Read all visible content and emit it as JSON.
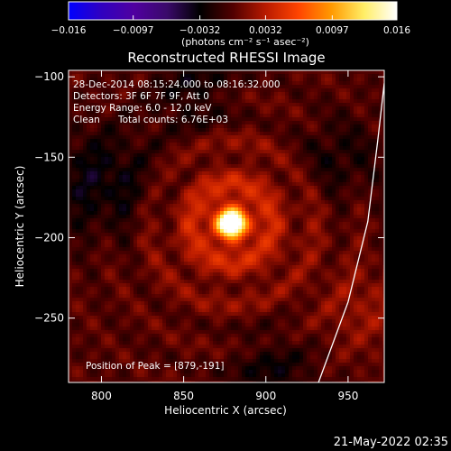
{
  "chart_data": {
    "type": "heatmap",
    "title": "Reconstructed RHESSI Image",
    "xlabel": "Heliocentric X (arcsec)",
    "ylabel": "Heliocentric Y (arcsec)",
    "xlim": [
      780,
      972
    ],
    "ylim": [
      -290,
      -96
    ],
    "x_ticks": [
      800,
      850,
      900,
      950
    ],
    "x_tick_labels": [
      "800",
      "850",
      "900",
      "950"
    ],
    "y_ticks": [
      -100,
      -150,
      -200,
      -250
    ],
    "y_tick_labels": [
      "−100",
      "−150",
      "−200",
      "−250"
    ],
    "colorbar": {
      "min": -0.016,
      "max": 0.016,
      "ticks": [
        -0.016,
        -0.0097,
        -0.0032,
        0.0032,
        0.0097,
        0.016
      ],
      "tick_labels": [
        "−0.016",
        "−0.0097",
        "−0.0032",
        "0.0032",
        "0.0097",
        "0.016"
      ],
      "unit_label": "(photons cm⁻² s⁻¹ asec⁻²)"
    },
    "source": {
      "x": 879,
      "y": -191,
      "peak": 0.016
    },
    "limb_arc": [
      [
        932,
        -290
      ],
      [
        950,
        -240
      ],
      [
        962,
        -190
      ],
      [
        968,
        -140
      ],
      [
        972,
        -104
      ]
    ],
    "annotations": {
      "time_range": "28-Dec-2014 08:15:24.000 to 08:16:32.000",
      "detectors": "Detectors: 3F 6F 7F 9F, Att 0",
      "energy_range": "Energy Range: 6.0 - 12.0 keV",
      "clean": "Clean",
      "total_counts": "Total counts: 6.76E+03",
      "peak_position": "Position of Peak = [879,-191]"
    },
    "grid": false,
    "colors": {
      "colormap": [
        "#0000ff",
        "#3000c0",
        "#5000a0",
        "#3a0a6a",
        "#000000",
        "#500000",
        "#b81a00",
        "#ff4400",
        "#ff9900",
        "#ffee66",
        "#ffffff"
      ]
    }
  },
  "footer": {
    "timestamp": "21-May-2022 02:35"
  }
}
